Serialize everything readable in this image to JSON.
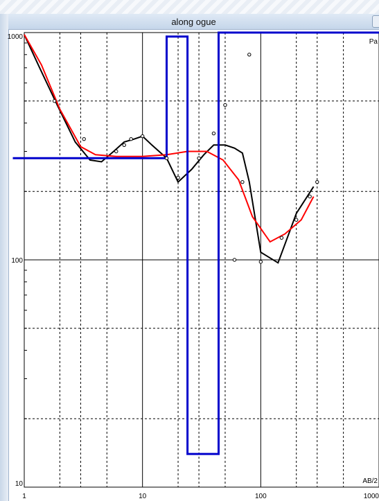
{
  "window": {
    "title": "along ogue"
  },
  "chart_data": {
    "type": "line",
    "xscale": "log",
    "yscale": "log",
    "xlim": [
      1,
      1000
    ],
    "ylim": [
      10,
      1000
    ],
    "x_tick_labels": [
      "1",
      "10",
      "100",
      "1000"
    ],
    "y_tick_labels": [
      "1000",
      "100",
      "10"
    ],
    "corner_label_top": "Pa",
    "corner_label_bottom": "AB/2",
    "grid": true,
    "series": [
      {
        "color": "#000000",
        "points": [
          [
            1,
            980
          ],
          [
            1.35,
            700
          ],
          [
            1.9,
            480
          ],
          [
            2.7,
            330
          ],
          [
            3.6,
            275
          ],
          [
            4.5,
            270
          ],
          [
            5.7,
            300
          ],
          [
            7,
            330
          ],
          [
            8.5,
            340
          ],
          [
            10,
            350
          ],
          [
            12,
            320
          ],
          [
            16,
            280
          ],
          [
            20,
            220
          ],
          [
            26,
            250
          ],
          [
            33,
            290
          ],
          [
            40,
            320
          ],
          [
            50,
            320
          ],
          [
            60,
            310
          ],
          [
            70,
            295
          ],
          [
            80,
            220
          ],
          [
            100,
            108
          ],
          [
            140,
            97
          ],
          [
            200,
            160
          ],
          [
            280,
            210
          ]
        ]
      },
      {
        "color": "#ff0000",
        "points": [
          [
            1,
            980
          ],
          [
            1.4,
            720
          ],
          [
            2,
            460
          ],
          [
            3,
            315
          ],
          [
            4,
            290
          ],
          [
            6,
            285
          ],
          [
            10,
            285
          ],
          [
            16,
            290
          ],
          [
            24,
            300
          ],
          [
            35,
            300
          ],
          [
            48,
            275
          ],
          [
            65,
            225
          ],
          [
            85,
            155
          ],
          [
            120,
            120
          ],
          [
            160,
            130
          ],
          [
            220,
            150
          ],
          [
            280,
            190
          ]
        ]
      },
      {
        "color": "#0000cc",
        "step": true,
        "points": [
          [
            0.8,
            280
          ],
          [
            16,
            280
          ],
          [
            16,
            960
          ],
          [
            24,
            960
          ],
          [
            24,
            14
          ],
          [
            44,
            14
          ],
          [
            44,
            1000
          ],
          [
            1100,
            1000
          ]
        ]
      },
      {
        "marker": "circle",
        "points": [
          [
            1.8,
            500
          ],
          [
            3.2,
            340
          ],
          [
            6,
            300
          ],
          [
            7,
            320
          ],
          [
            8,
            340
          ],
          [
            10,
            350
          ],
          [
            16,
            280
          ],
          [
            20,
            230
          ],
          [
            30,
            280
          ],
          [
            40,
            360
          ],
          [
            50,
            480
          ],
          [
            70,
            220
          ],
          [
            80,
            800
          ],
          [
            60,
            100
          ],
          [
            100,
            98
          ],
          [
            150,
            125
          ],
          [
            200,
            150
          ],
          [
            260,
            190
          ],
          [
            300,
            220
          ]
        ]
      }
    ]
  }
}
